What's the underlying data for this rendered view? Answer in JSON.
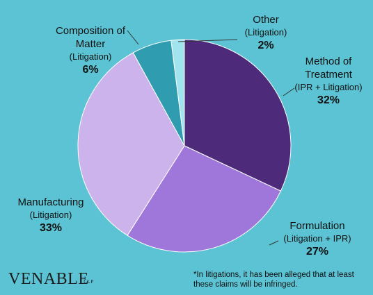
{
  "chart_data": {
    "type": "pie",
    "slices": [
      {
        "name": "Method of Treatment",
        "qualifier": "(IPR + Litigation)",
        "value": 32,
        "label": "32%",
        "color": "#4D2A7A"
      },
      {
        "name": "Formulation",
        "qualifier": "(Litigation + IPR)",
        "value": 27,
        "label": "27%",
        "color": "#9F77DA"
      },
      {
        "name": "Manufacturing",
        "qualifier": "(Litigation)",
        "value": 33,
        "label": "33%",
        "color": "#CCB3EC"
      },
      {
        "name": "Composition of Matter",
        "qualifier": "(Litigation)",
        "value": 6,
        "label": "6%",
        "color": "#2F9CAF"
      },
      {
        "name": "Other",
        "qualifier": "(Litigation)",
        "value": 2,
        "label": "2%",
        "color": "#A2E4EE"
      }
    ],
    "label_lines": {
      "method": [
        "Method of",
        "Treatment"
      ],
      "formulation": [
        "Formulation"
      ],
      "manufacturing": [
        "Manufacturing"
      ],
      "composition": [
        "Composition of",
        "Matter"
      ],
      "other": [
        "Other"
      ]
    }
  },
  "logo": {
    "text": "VENABLE",
    "suffix": "LLP"
  },
  "footnote": "*In litigations, it has been alleged that at least these claims will be infringed."
}
